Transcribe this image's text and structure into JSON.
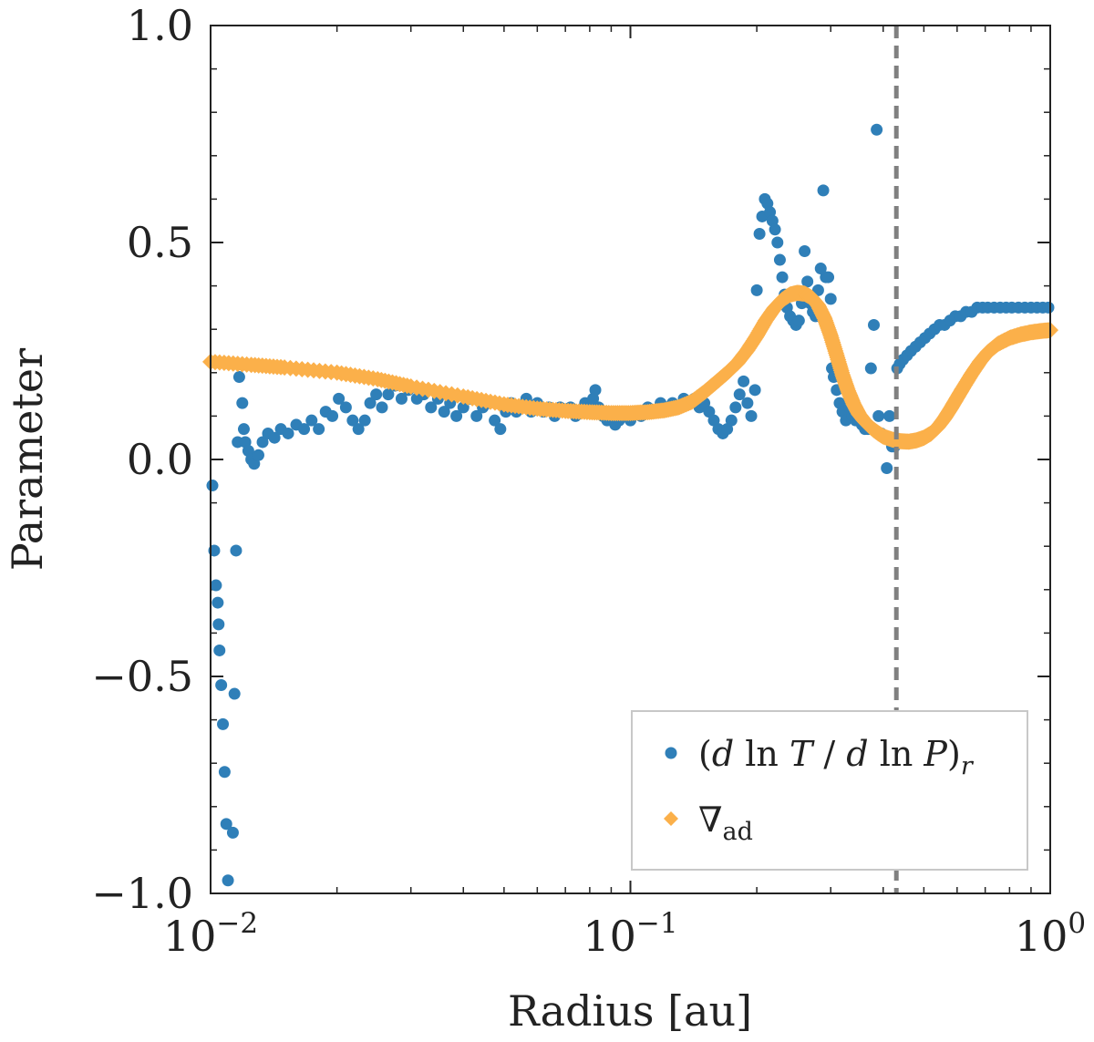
{
  "chart_data": {
    "type": "scatter",
    "title": "",
    "xlabel": "Radius [au]",
    "ylabel": "Parameter",
    "xscale": "log",
    "xlim": [
      0.01,
      1.0
    ],
    "ylim": [
      -1.0,
      1.0
    ],
    "x_ticks": [
      {
        "value": 0.01,
        "base": "10",
        "exp": "−2"
      },
      {
        "value": 0.1,
        "base": "10",
        "exp": "−1"
      },
      {
        "value": 1.0,
        "base": "10",
        "exp": "0"
      }
    ],
    "y_ticks": [
      {
        "value": 1.0,
        "label": "1.0"
      },
      {
        "value": 0.5,
        "label": "0.5"
      },
      {
        "value": 0.0,
        "label": "0.0"
      },
      {
        "value": -0.5,
        "label": "−0.5"
      },
      {
        "value": -1.0,
        "label": "−1.0"
      }
    ],
    "legend_position": "lower-right",
    "vline": {
      "x": 0.43,
      "color": "#808080",
      "style": "dashed"
    },
    "series": [
      {
        "name": "(d ln T / d ln P)_r",
        "label_parts": {
          "open": "(",
          "d1": "d",
          "ln1": " ln ",
          "T": "T",
          "slash": " / ",
          "d2": "d",
          "ln2": " ln ",
          "P": "P",
          "close": ")",
          "sub": "r"
        },
        "color": "#2f7fb8",
        "marker": "circle",
        "points": [
          [
            0.0101,
            -0.06
          ],
          [
            0.0102,
            -0.21
          ],
          [
            0.0103,
            -0.29
          ],
          [
            0.0104,
            -0.33
          ],
          [
            0.01045,
            -0.38
          ],
          [
            0.0105,
            -0.44
          ],
          [
            0.0106,
            -0.52
          ],
          [
            0.0107,
            -0.61
          ],
          [
            0.0108,
            -0.72
          ],
          [
            0.0109,
            -0.84
          ],
          [
            0.011,
            -0.97
          ],
          [
            0.0113,
            -0.86
          ],
          [
            0.0114,
            -0.54
          ],
          [
            0.0115,
            -0.21
          ],
          [
            0.0116,
            0.04
          ],
          [
            0.0117,
            0.19
          ],
          [
            0.0118,
            0.22
          ],
          [
            0.0119,
            0.13
          ],
          [
            0.012,
            0.07
          ],
          [
            0.0121,
            0.04
          ],
          [
            0.0123,
            0.02
          ],
          [
            0.0125,
            0.0
          ],
          [
            0.0127,
            -0.01
          ],
          [
            0.013,
            0.01
          ],
          [
            0.0133,
            0.04
          ],
          [
            0.0137,
            0.06
          ],
          [
            0.0142,
            0.05
          ],
          [
            0.0147,
            0.07
          ],
          [
            0.0153,
            0.06
          ],
          [
            0.016,
            0.08
          ],
          [
            0.0167,
            0.07
          ],
          [
            0.0174,
            0.09
          ],
          [
            0.0181,
            0.07
          ],
          [
            0.0188,
            0.11
          ],
          [
            0.0195,
            0.1
          ],
          [
            0.0202,
            0.14
          ],
          [
            0.021,
            0.12
          ],
          [
            0.0218,
            0.09
          ],
          [
            0.0225,
            0.07
          ],
          [
            0.0233,
            0.09
          ],
          [
            0.024,
            0.13
          ],
          [
            0.0248,
            0.15
          ],
          [
            0.0256,
            0.12
          ],
          [
            0.0265,
            0.15
          ],
          [
            0.0275,
            0.17
          ],
          [
            0.0285,
            0.14
          ],
          [
            0.0296,
            0.16
          ],
          [
            0.031,
            0.14
          ],
          [
            0.0322,
            0.15
          ],
          [
            0.0335,
            0.12
          ],
          [
            0.0348,
            0.14
          ],
          [
            0.036,
            0.11
          ],
          [
            0.0372,
            0.13
          ],
          [
            0.0385,
            0.1
          ],
          [
            0.04,
            0.12
          ],
          [
            0.0415,
            0.14
          ],
          [
            0.043,
            0.1
          ],
          [
            0.0445,
            0.12
          ],
          [
            0.046,
            0.13
          ],
          [
            0.0475,
            0.09
          ],
          [
            0.049,
            0.07
          ],
          [
            0.0505,
            0.11
          ],
          [
            0.052,
            0.13
          ],
          [
            0.0535,
            0.11
          ],
          [
            0.055,
            0.12
          ],
          [
            0.0565,
            0.14
          ],
          [
            0.058,
            0.11
          ],
          [
            0.06,
            0.13
          ],
          [
            0.062,
            0.11
          ],
          [
            0.064,
            0.12
          ],
          [
            0.066,
            0.1
          ],
          [
            0.068,
            0.12
          ],
          [
            0.07,
            0.11
          ],
          [
            0.072,
            0.12
          ],
          [
            0.074,
            0.1
          ],
          [
            0.076,
            0.11
          ],
          [
            0.078,
            0.13
          ],
          [
            0.08,
            0.12
          ],
          [
            0.0815,
            0.14
          ],
          [
            0.0825,
            0.16
          ],
          [
            0.084,
            0.12
          ],
          [
            0.086,
            0.1
          ],
          [
            0.088,
            0.09
          ],
          [
            0.09,
            0.1
          ],
          [
            0.092,
            0.08
          ],
          [
            0.094,
            0.09
          ],
          [
            0.097,
            0.1
          ],
          [
            0.1,
            0.09
          ],
          [
            0.103,
            0.11
          ],
          [
            0.106,
            0.1
          ],
          [
            0.11,
            0.12
          ],
          [
            0.114,
            0.11
          ],
          [
            0.118,
            0.13
          ],
          [
            0.122,
            0.12
          ],
          [
            0.126,
            0.13
          ],
          [
            0.13,
            0.12
          ],
          [
            0.134,
            0.14
          ],
          [
            0.138,
            0.13
          ],
          [
            0.142,
            0.14
          ],
          [
            0.146,
            0.12
          ],
          [
            0.15,
            0.13
          ],
          [
            0.154,
            0.11
          ],
          [
            0.158,
            0.09
          ],
          [
            0.162,
            0.07
          ],
          [
            0.166,
            0.06
          ],
          [
            0.17,
            0.07
          ],
          [
            0.174,
            0.09
          ],
          [
            0.178,
            0.12
          ],
          [
            0.182,
            0.15
          ],
          [
            0.186,
            0.18
          ],
          [
            0.19,
            0.13
          ],
          [
            0.194,
            0.1
          ],
          [
            0.198,
            0.16
          ],
          [
            0.2,
            0.39
          ],
          [
            0.203,
            0.52
          ],
          [
            0.206,
            0.56
          ],
          [
            0.209,
            0.6
          ],
          [
            0.212,
            0.59
          ],
          [
            0.215,
            0.57
          ],
          [
            0.218,
            0.55
          ],
          [
            0.221,
            0.53
          ],
          [
            0.224,
            0.5
          ],
          [
            0.227,
            0.46
          ],
          [
            0.23,
            0.42
          ],
          [
            0.233,
            0.38
          ],
          [
            0.236,
            0.35
          ],
          [
            0.24,
            0.33
          ],
          [
            0.244,
            0.32
          ],
          [
            0.248,
            0.31
          ],
          [
            0.252,
            0.32
          ],
          [
            0.256,
            0.36
          ],
          [
            0.26,
            0.48
          ],
          [
            0.264,
            0.41
          ],
          [
            0.268,
            0.36
          ],
          [
            0.272,
            0.34
          ],
          [
            0.276,
            0.33
          ],
          [
            0.28,
            0.39
          ],
          [
            0.284,
            0.44
          ],
          [
            0.288,
            0.62
          ],
          [
            0.292,
            0.42
          ],
          [
            0.296,
            0.42
          ],
          [
            0.3,
            0.37
          ],
          [
            0.302,
            0.21
          ],
          [
            0.305,
            0.19
          ],
          [
            0.31,
            0.16
          ],
          [
            0.315,
            0.13
          ],
          [
            0.32,
            0.11
          ],
          [
            0.326,
            0.09
          ],
          [
            0.332,
            0.12
          ],
          [
            0.338,
            0.1
          ],
          [
            0.344,
            0.09
          ],
          [
            0.35,
            0.09
          ],
          [
            0.356,
            0.08
          ],
          [
            0.362,
            0.07
          ],
          [
            0.368,
            0.07
          ],
          [
            0.374,
            0.21
          ],
          [
            0.38,
            0.31
          ],
          [
            0.386,
            0.76
          ],
          [
            0.39,
            0.1
          ],
          [
            0.396,
            0.06
          ],
          [
            0.402,
            0.05
          ],
          [
            0.408,
            -0.02
          ],
          [
            0.414,
            0.1
          ],
          [
            0.42,
            0.03
          ],
          [
            0.426,
            0.03
          ],
          [
            0.432,
            0.21
          ],
          [
            0.438,
            0.22
          ],
          [
            0.446,
            0.23
          ],
          [
            0.456,
            0.24
          ],
          [
            0.466,
            0.25
          ],
          [
            0.478,
            0.26
          ],
          [
            0.49,
            0.27
          ],
          [
            0.503,
            0.28
          ],
          [
            0.516,
            0.29
          ],
          [
            0.53,
            0.3
          ],
          [
            0.545,
            0.31
          ],
          [
            0.56,
            0.31
          ],
          [
            0.577,
            0.32
          ],
          [
            0.594,
            0.33
          ],
          [
            0.612,
            0.33
          ],
          [
            0.63,
            0.34
          ],
          [
            0.65,
            0.34
          ],
          [
            0.67,
            0.35
          ],
          [
            0.69,
            0.35
          ],
          [
            0.71,
            0.35
          ],
          [
            0.735,
            0.35
          ],
          [
            0.76,
            0.35
          ],
          [
            0.785,
            0.35
          ],
          [
            0.81,
            0.35
          ],
          [
            0.84,
            0.35
          ],
          [
            0.87,
            0.35
          ],
          [
            0.9,
            0.35
          ],
          [
            0.93,
            0.35
          ],
          [
            0.96,
            0.35
          ],
          [
            0.99,
            0.35
          ]
        ]
      },
      {
        "name": "∇_ad",
        "label_parts": {
          "main": "∇",
          "sub": "ad"
        },
        "color": "#fbb04a",
        "marker": "diamond",
        "curve": [
          [
            0.01,
            0.225
          ],
          [
            0.0125,
            0.218
          ],
          [
            0.015,
            0.212
          ],
          [
            0.02,
            0.2
          ],
          [
            0.025,
            0.185
          ],
          [
            0.03,
            0.168
          ],
          [
            0.04,
            0.145
          ],
          [
            0.05,
            0.127
          ],
          [
            0.06,
            0.117
          ],
          [
            0.07,
            0.112
          ],
          [
            0.08,
            0.109
          ],
          [
            0.09,
            0.107
          ],
          [
            0.1,
            0.107
          ],
          [
            0.11,
            0.109
          ],
          [
            0.12,
            0.113
          ],
          [
            0.13,
            0.12
          ],
          [
            0.14,
            0.133
          ],
          [
            0.15,
            0.155
          ],
          [
            0.16,
            0.178
          ],
          [
            0.17,
            0.2
          ],
          [
            0.18,
            0.223
          ],
          [
            0.19,
            0.252
          ],
          [
            0.2,
            0.285
          ],
          [
            0.21,
            0.32
          ],
          [
            0.22,
            0.348
          ],
          [
            0.23,
            0.368
          ],
          [
            0.24,
            0.38
          ],
          [
            0.25,
            0.384
          ],
          [
            0.26,
            0.382
          ],
          [
            0.27,
            0.373
          ],
          [
            0.28,
            0.355
          ],
          [
            0.29,
            0.325
          ],
          [
            0.3,
            0.285
          ],
          [
            0.31,
            0.24
          ],
          [
            0.32,
            0.195
          ],
          [
            0.33,
            0.158
          ],
          [
            0.34,
            0.128
          ],
          [
            0.35,
            0.105
          ],
          [
            0.36,
            0.09
          ],
          [
            0.37,
            0.078
          ],
          [
            0.38,
            0.068
          ],
          [
            0.39,
            0.06
          ],
          [
            0.4,
            0.053
          ],
          [
            0.42,
            0.046
          ],
          [
            0.44,
            0.042
          ],
          [
            0.46,
            0.041
          ],
          [
            0.48,
            0.044
          ],
          [
            0.5,
            0.05
          ],
          [
            0.52,
            0.06
          ],
          [
            0.54,
            0.075
          ],
          [
            0.56,
            0.095
          ],
          [
            0.58,
            0.118
          ],
          [
            0.6,
            0.142
          ],
          [
            0.62,
            0.165
          ],
          [
            0.65,
            0.197
          ],
          [
            0.68,
            0.225
          ],
          [
            0.71,
            0.247
          ],
          [
            0.75,
            0.266
          ],
          [
            0.8,
            0.28
          ],
          [
            0.85,
            0.288
          ],
          [
            0.9,
            0.293
          ],
          [
            0.95,
            0.296
          ],
          [
            1.0,
            0.298
          ]
        ]
      }
    ]
  }
}
